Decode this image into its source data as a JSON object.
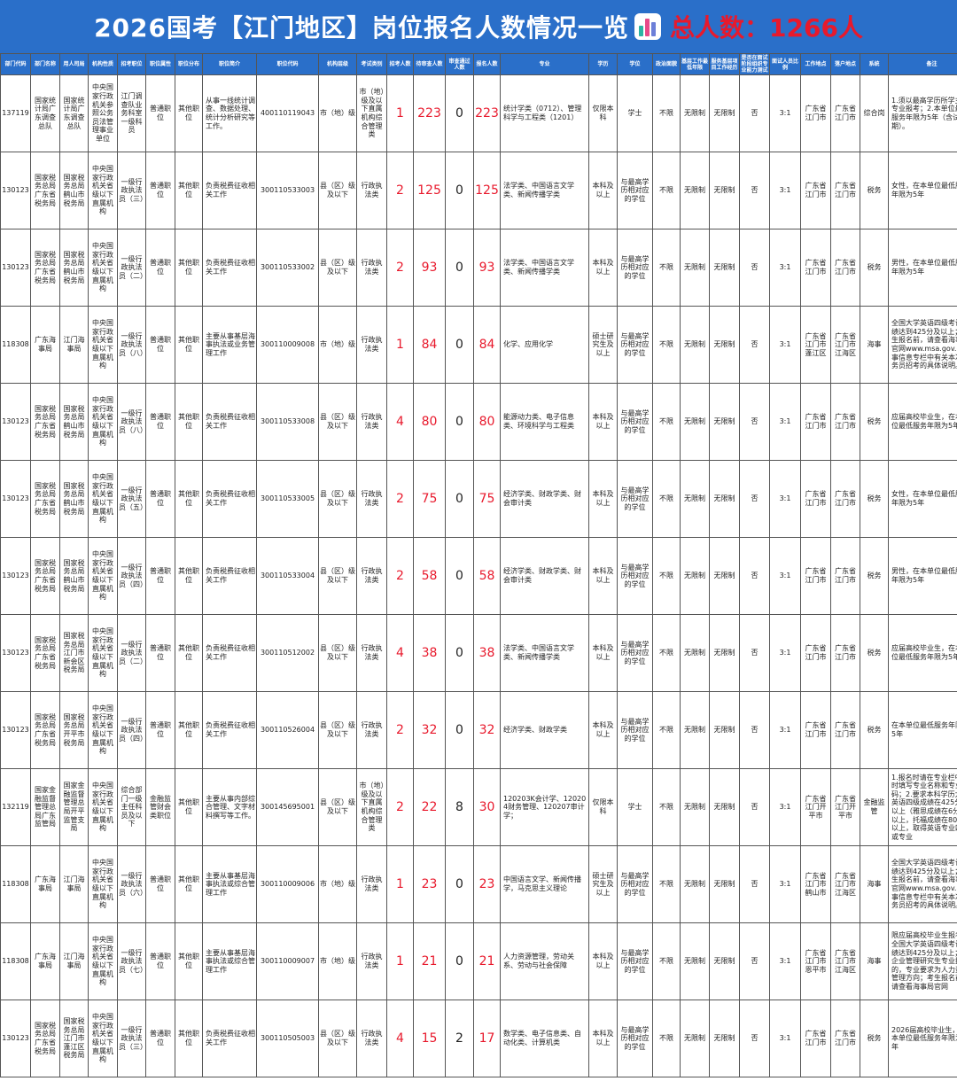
{
  "title": {
    "main": "2026国考【江门地区】岗位报名人数情况一览",
    "total": "总人数：1266人"
  },
  "columns": [
    "部门代码",
    "部门名称",
    "用人司局",
    "机构性质",
    "招考职位",
    "职位属性",
    "职位分布",
    "职位简介",
    "职位代码",
    "机构层级",
    "考试类别",
    "招考人数",
    "待审查人数",
    "审查通过人数",
    "报名人数",
    "专业",
    "学历",
    "学位",
    "政治面貌",
    "基层工作最低年限",
    "服务基层项目工作经历",
    "是否在面试阶段组织专业能力测试",
    "面试人员比例",
    "工作地点",
    "落户地点",
    "系统",
    "备注"
  ],
  "rows": [
    {
      "dept_code": "137119",
      "dept_name": "国家统计局广东调查总队",
      "bureau": "国家统计局广东调查总队",
      "nature": "中央国家行政机关参照公务员法管理事业单位",
      "position": "江门调查队业务科室一级科员",
      "attr": "普通职位",
      "dist": "其他职位",
      "intro": "从事一线统计调查、数据处理、统计分析研究等工作。",
      "code": "400110119043",
      "level": "市（地）级",
      "exam": "市（地）级及以下直属机构综合管理类",
      "recruit": "1",
      "pending": "223",
      "passed": "0",
      "applicants": "223",
      "major": "统计学类（0712）、管理科学与工程类（1201）",
      "edu": "仅限本科",
      "degree": "学士",
      "political": "不限",
      "years": "无限制",
      "service": "无限制",
      "test": "否",
      "ratio": "3:1",
      "workplace": "广东省江门市",
      "hukou": "广东省江门市",
      "system": "综合岗",
      "note": "1.须以最高学历所学主修专业报考；2.本单位最低服务年限为5年（含试用期）。"
    },
    {
      "dept_code": "130123",
      "dept_name": "国家税务总局广东省税务局",
      "bureau": "国家税务总局鹤山市税务局",
      "nature": "中央国家行政机关省级以下直属机构",
      "position": "一级行政执法员（三）",
      "attr": "普通职位",
      "dist": "其他职位",
      "intro": "负责税费征收相关工作",
      "code": "300110533003",
      "level": "县（区）级及以下",
      "exam": "行政执法类",
      "recruit": "2",
      "pending": "125",
      "passed": "0",
      "applicants": "125",
      "major": "法学类、中国语言文学类、新闻传播学类",
      "edu": "本科及以上",
      "degree": "与最高学历相对应的学位",
      "political": "不限",
      "years": "无限制",
      "service": "无限制",
      "test": "否",
      "ratio": "3:1",
      "workplace": "广东省江门市",
      "hukou": "广东省江门市",
      "system": "税务",
      "note": "女性，在本单位最低服务年限为5年"
    },
    {
      "dept_code": "130123",
      "dept_name": "国家税务总局广东省税务局",
      "bureau": "国家税务总局鹤山市税务局",
      "nature": "中央国家行政机关省级以下直属机构",
      "position": "一级行政执法员（二）",
      "attr": "普通职位",
      "dist": "其他职位",
      "intro": "负责税费征收相关工作",
      "code": "300110533002",
      "level": "县（区）级及以下",
      "exam": "行政执法类",
      "recruit": "2",
      "pending": "93",
      "passed": "0",
      "applicants": "93",
      "major": "法学类、中国语言文学类、新闻传播学类",
      "edu": "本科及以上",
      "degree": "与最高学历相对应的学位",
      "political": "不限",
      "years": "无限制",
      "service": "无限制",
      "test": "否",
      "ratio": "3:1",
      "workplace": "广东省江门市",
      "hukou": "广东省江门市",
      "system": "税务",
      "note": "男性，在本单位最低服务年限为5年"
    },
    {
      "dept_code": "118308",
      "dept_name": "广东海事局",
      "bureau": "江门海事局",
      "nature": "中央国家行政机关省级以下直属机构",
      "position": "一级行政执法员（八）",
      "attr": "普通职位",
      "dist": "其他职位",
      "intro": "主要从事基层海事执法或业务管理工作",
      "code": "300110009008",
      "level": "市（地）级",
      "exam": "行政执法类",
      "recruit": "1",
      "pending": "84",
      "passed": "0",
      "applicants": "84",
      "major": "化学、应用化学",
      "edu": "硕士研究生及以上",
      "degree": "与最高学历相对应的学位",
      "political": "不限",
      "years": "无限制",
      "service": "无限制",
      "test": "否",
      "ratio": "3:1",
      "workplace": "广东省江门市蓬江区",
      "hukou": "广东省江门市江海区",
      "system": "海事",
      "note": "全国大学英语四级考试成绩达到425分及以上；考生报名前，请查看海事局官网www.msa.gov.cn人事信息专栏中有关本次公务员招考的具体说明。"
    },
    {
      "dept_code": "130123",
      "dept_name": "国家税务总局广东省税务局",
      "bureau": "国家税务总局鹤山市税务局",
      "nature": "中央国家行政机关省级以下直属机构",
      "position": "一级行政执法员（八）",
      "attr": "普通职位",
      "dist": "其他职位",
      "intro": "负责税费征收相关工作",
      "code": "300110533008",
      "level": "县（区）级及以下",
      "exam": "行政执法类",
      "recruit": "4",
      "pending": "80",
      "passed": "0",
      "applicants": "80",
      "major": "能源动力类、电子信息类、环境科学与工程类",
      "edu": "本科及以上",
      "degree": "与最高学历相对应的学位",
      "political": "不限",
      "years": "无限制",
      "service": "无限制",
      "test": "否",
      "ratio": "3:1",
      "workplace": "广东省江门市",
      "hukou": "广东省江门市",
      "system": "税务",
      "note": "应届高校毕业生，在本单位最低服务年限为5年"
    },
    {
      "dept_code": "130123",
      "dept_name": "国家税务总局广东省税务局",
      "bureau": "国家税务总局鹤山市税务局",
      "nature": "中央国家行政机关省级以下直属机构",
      "position": "一级行政执法员（五）",
      "attr": "普通职位",
      "dist": "其他职位",
      "intro": "负责税费征收相关工作",
      "code": "300110533005",
      "level": "县（区）级及以下",
      "exam": "行政执法类",
      "recruit": "2",
      "pending": "75",
      "passed": "0",
      "applicants": "75",
      "major": "经济学类、财政学类、财会审计类",
      "edu": "本科及以上",
      "degree": "与最高学历相对应的学位",
      "political": "不限",
      "years": "无限制",
      "service": "无限制",
      "test": "否",
      "ratio": "3:1",
      "workplace": "广东省江门市",
      "hukou": "广东省江门市",
      "system": "税务",
      "note": "女性，在本单位最低服务年限为5年"
    },
    {
      "dept_code": "130123",
      "dept_name": "国家税务总局广东省税务局",
      "bureau": "国家税务总局鹤山市税务局",
      "nature": "中央国家行政机关省级以下直属机构",
      "position": "一级行政执法员（四）",
      "attr": "普通职位",
      "dist": "其他职位",
      "intro": "负责税费征收相关工作",
      "code": "300110533004",
      "level": "县（区）级及以下",
      "exam": "行政执法类",
      "recruit": "2",
      "pending": "58",
      "passed": "0",
      "applicants": "58",
      "major": "经济学类、财政学类、财会审计类",
      "edu": "本科及以上",
      "degree": "与最高学历相对应的学位",
      "political": "不限",
      "years": "无限制",
      "service": "无限制",
      "test": "否",
      "ratio": "3:1",
      "workplace": "广东省江门市",
      "hukou": "广东省江门市",
      "system": "税务",
      "note": "男性，在本单位最低服务年限为5年"
    },
    {
      "dept_code": "130123",
      "dept_name": "国家税务总局广东省税务局",
      "bureau": "国家税务总局江门市新会区税务局",
      "nature": "中央国家行政机关省级以下直属机构",
      "position": "一级行政执法员（二）",
      "attr": "普通职位",
      "dist": "其他职位",
      "intro": "负责税费征收相关工作",
      "code": "300110512002",
      "level": "县（区）级及以下",
      "exam": "行政执法类",
      "recruit": "4",
      "pending": "38",
      "passed": "0",
      "applicants": "38",
      "major": "法学类、中国语言文学类、新闻传播学类",
      "edu": "本科及以上",
      "degree": "与最高学历相对应的学位",
      "political": "不限",
      "years": "无限制",
      "service": "无限制",
      "test": "否",
      "ratio": "3:1",
      "workplace": "广东省江门市",
      "hukou": "广东省江门市",
      "system": "税务",
      "note": "应届高校毕业生，在本单位最低服务年限为5年"
    },
    {
      "dept_code": "130123",
      "dept_name": "国家税务总局广东省税务局",
      "bureau": "国家税务总局开平市税务局",
      "nature": "中央国家行政机关省级以下直属机构",
      "position": "一级行政执法员（四）",
      "attr": "普通职位",
      "dist": "其他职位",
      "intro": "负责税费征收相关工作",
      "code": "300110526004",
      "level": "县（区）级及以下",
      "exam": "行政执法类",
      "recruit": "2",
      "pending": "32",
      "passed": "0",
      "applicants": "32",
      "major": "经济学类、财政学类",
      "edu": "本科及以上",
      "degree": "与最高学历相对应的学位",
      "political": "不限",
      "years": "无限制",
      "service": "无限制",
      "test": "否",
      "ratio": "3:1",
      "workplace": "广东省江门市",
      "hukou": "广东省江门市",
      "system": "税务",
      "note": "在本单位最低服务年限为5年"
    },
    {
      "dept_code": "132119",
      "dept_name": "国家金融监督管理总局广东监管局",
      "bureau": "国家金融监督管理总局开平监管支局",
      "nature": "中央国家行政机关省级以下直属机构",
      "position": "综合部门一级主任科员及以下",
      "attr": "金融监管财会类职位",
      "dist": "其他职位",
      "intro": "主要从事内部综合管理、文字材料撰写等工作。",
      "code": "300145695001",
      "level": "县（区）级及以下",
      "exam": "市（地）级及以下直属机构综合管理类",
      "recruit": "2",
      "pending": "22",
      "passed": "8",
      "applicants": "30",
      "major": "120203K会计学、120204财务管理、120207审计学；",
      "edu": "仅限本科",
      "degree": "学士",
      "political": "不限",
      "years": "无限制",
      "service": "无限制",
      "test": "否",
      "ratio": "3:1",
      "workplace": "广东省江门开平市",
      "hukou": "广东省江门开平市",
      "system": "金融监管",
      "note": "1.报名时请在专业栏中同时填写专业名称和专业代码；2.要求本科学历大学英语四级成绩在425分及以上（雅思成绩在6分及以上，托福成绩在80分及以上，取得英语专业四级或专业"
    },
    {
      "dept_code": "118308",
      "dept_name": "广东海事局",
      "bureau": "江门海事局",
      "nature": "中央国家行政机关省级以下直属机构",
      "position": "一级行政执法员（六）",
      "attr": "普通职位",
      "dist": "其他职位",
      "intro": "主要从事基层海事执法或综合管理工作",
      "code": "300110009006",
      "level": "市（地）级",
      "exam": "行政执法类",
      "recruit": "1",
      "pending": "23",
      "passed": "0",
      "applicants": "23",
      "major": "中国语言文学、新闻传播学，马克思主义理论",
      "edu": "硕士研究生及以上",
      "degree": "与最高学历相对应的学位",
      "political": "不限",
      "years": "无限制",
      "service": "无限制",
      "test": "否",
      "ratio": "3:1",
      "workplace": "广东省江门市鹤山市",
      "hukou": "广东省江门市江海区",
      "system": "海事",
      "note": "全国大学英语四级考试成绩达到425分及以上；考生报名前，请查看海事局官网www.msa.gov.cn人事信息专栏中有关本次公务员招考的具体说明。"
    },
    {
      "dept_code": "118308",
      "dept_name": "广东海事局",
      "bureau": "江门海事局",
      "nature": "中央国家行政机关省级以下直属机构",
      "position": "一级行政执法员（七）",
      "attr": "普通职位",
      "dist": "其他职位",
      "intro": "主要从事基层海事执法或综合管理工作",
      "code": "300110009007",
      "level": "市（地）级",
      "exam": "行政执法类",
      "recruit": "1",
      "pending": "21",
      "passed": "0",
      "applicants": "21",
      "major": "人力资源管理，劳动关系、劳动与社会保障",
      "edu": "本科及以上",
      "degree": "与最高学历相对应的学位",
      "political": "不限",
      "years": "无限制",
      "service": "无限制",
      "test": "否",
      "ratio": "3:1",
      "workplace": "广东省江门市恩平市",
      "hukou": "广东省江门市江海区",
      "system": "海事",
      "note": "限应届高校毕业生报考；全国大学英语四级考试成绩达到425分及以上；以企业管理研究生专业报考的，专业要求为人力资源管理方向；考生报名前，请查看海事局官网"
    },
    {
      "dept_code": "130123",
      "dept_name": "国家税务总局广东省税务局",
      "bureau": "国家税务总局江门市蓬江区税务局",
      "nature": "中央国家行政机关省级以下直属机构",
      "position": "一级行政执法员（三）",
      "attr": "普通职位",
      "dist": "其他职位",
      "intro": "负责税费征收相关工作",
      "code": "300110505003",
      "level": "县（区）级及以下",
      "exam": "行政执法类",
      "recruit": "4",
      "pending": "15",
      "passed": "2",
      "applicants": "17",
      "major": "数学类、电子信息类、自动化类、计算机类",
      "edu": "本科及以上",
      "degree": "与最高学历相对应的学位",
      "political": "不限",
      "years": "无限制",
      "service": "无限制",
      "test": "否",
      "ratio": "3:1",
      "workplace": "广东省江门市",
      "hukou": "广东省江门市",
      "system": "税务",
      "note": "2026届高校毕业生，在本单位最低服务年限为5年"
    }
  ]
}
